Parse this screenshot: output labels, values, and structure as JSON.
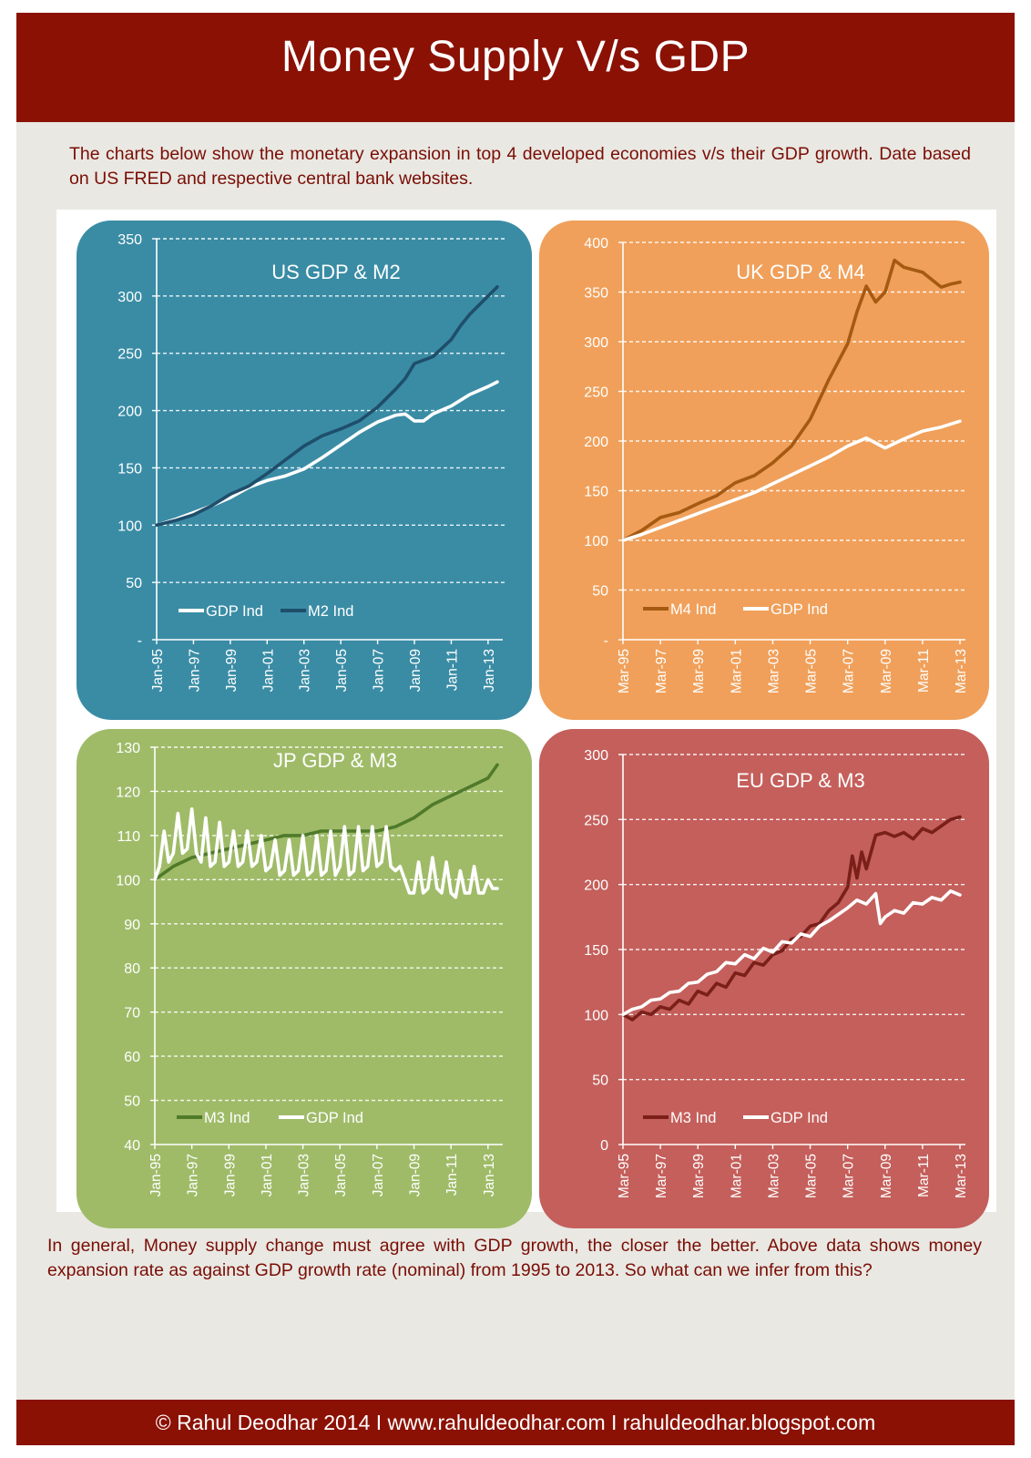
{
  "header": {
    "title": "Money Supply V/s GDP"
  },
  "intro": "The charts below show the monetary expansion in top 4 developed economies v/s their GDP growth. Date based on US FRED and respective central bank websites.",
  "conclusion": "In general, Money supply change must agree with GDP growth, the closer the better. Above data shows money expansion rate as against GDP growth rate (nominal) from 1995 to 2013. So what can we infer from this?",
  "footer": {
    "text": "© Rahul Deodhar 2014 I www.rahuldeodhar.com I rahuldeodhar.blogspot.com"
  },
  "colors": {
    "us": "#3a8ca5",
    "uk": "#f0a05a",
    "jp": "#9fbb68",
    "eu": "#c45f5b"
  },
  "chart_data": [
    {
      "id": "us",
      "type": "line",
      "title": "US GDP & M2",
      "x_start": 1995.0,
      "x_end": 2013.5,
      "x_ticks": [
        {
          "label": "Jan-95",
          "x": 1995.0
        },
        {
          "label": "Jan-97",
          "x": 1997.0
        },
        {
          "label": "Jan-99",
          "x": 1999.0
        },
        {
          "label": "Jan-01",
          "x": 2001.0
        },
        {
          "label": "Jan-03",
          "x": 2003.0
        },
        {
          "label": "Jan-05",
          "x": 2005.0
        },
        {
          "label": "Jan-07",
          "x": 2007.0
        },
        {
          "label": "Jan-09",
          "x": 2009.0
        },
        {
          "label": "Jan-11",
          "x": 2011.0
        },
        {
          "label": "Jan-13",
          "x": 2013.0
        }
      ],
      "ylim": [
        0,
        350
      ],
      "y_ticks": [
        {
          "label": "-",
          "v": 0
        },
        {
          "label": "50",
          "v": 50
        },
        {
          "label": "100",
          "v": 100
        },
        {
          "label": "150",
          "v": 150
        },
        {
          "label": "200",
          "v": 200
        },
        {
          "label": "250",
          "v": 250
        },
        {
          "label": "300",
          "v": 300
        },
        {
          "label": "350",
          "v": 350
        }
      ],
      "grid": true,
      "legend": [
        "GDP Ind",
        "M2 Ind"
      ],
      "series": [
        {
          "name": "GDP Ind",
          "color": "#ffffff",
          "x": [
            1995.0,
            1996.0,
            1997.0,
            1998.0,
            1999.0,
            2000.0,
            2001.0,
            2002.0,
            2003.0,
            2004.0,
            2005.0,
            2006.0,
            2007.0,
            2008.0,
            2008.5,
            2009.0,
            2009.5,
            2010.0,
            2011.0,
            2012.0,
            2013.0,
            2013.5
          ],
          "y": [
            100,
            105,
            111,
            117,
            124,
            133,
            139,
            143,
            149,
            159,
            170,
            181,
            190,
            196,
            197,
            191,
            191,
            197,
            204,
            214,
            221,
            225
          ]
        },
        {
          "name": "M2 Ind",
          "color": "#1f4e6b",
          "x": [
            1995.0,
            1996.0,
            1997.0,
            1998.0,
            1999.0,
            2000.0,
            2001.0,
            2002.0,
            2003.0,
            2004.0,
            2005.0,
            2006.0,
            2007.0,
            2008.0,
            2008.5,
            2009.0,
            2010.0,
            2011.0,
            2011.5,
            2012.0,
            2013.0,
            2013.5
          ],
          "y": [
            100,
            104,
            109,
            117,
            127,
            134,
            145,
            157,
            169,
            178,
            184,
            191,
            203,
            219,
            228,
            241,
            247,
            262,
            274,
            284,
            300,
            308
          ]
        }
      ]
    },
    {
      "id": "uk",
      "type": "line",
      "title": "UK GDP & M4",
      "x_start": 1995.0,
      "x_end": 2013.0,
      "x_ticks": [
        {
          "label": "Mar-95",
          "x": 1995.0
        },
        {
          "label": "Mar-97",
          "x": 1997.0
        },
        {
          "label": "Mar-99",
          "x": 1999.0
        },
        {
          "label": "Mar-01",
          "x": 2001.0
        },
        {
          "label": "Mar-03",
          "x": 2003.0
        },
        {
          "label": "Mar-05",
          "x": 2005.0
        },
        {
          "label": "Mar-07",
          "x": 2007.0
        },
        {
          "label": "Mar-09",
          "x": 2009.0
        },
        {
          "label": "Mar-11",
          "x": 2011.0
        },
        {
          "label": "Mar-13",
          "x": 2013.0
        }
      ],
      "ylim": [
        0,
        400
      ],
      "y_ticks": [
        {
          "label": "-",
          "v": 0
        },
        {
          "label": "50",
          "v": 50
        },
        {
          "label": "100",
          "v": 100
        },
        {
          "label": "150",
          "v": 150
        },
        {
          "label": "200",
          "v": 200
        },
        {
          "label": "250",
          "v": 250
        },
        {
          "label": "300",
          "v": 300
        },
        {
          "label": "350",
          "v": 350
        },
        {
          "label": "400",
          "v": 400
        }
      ],
      "grid": true,
      "legend": [
        "M4 Ind",
        "GDP Ind"
      ],
      "series": [
        {
          "name": "M4 Ind",
          "color": "#a55a12",
          "x": [
            1995.0,
            1996.0,
            1997.0,
            1998.0,
            1999.0,
            2000.0,
            2001.0,
            2002.0,
            2003.0,
            2004.0,
            2005.0,
            2006.0,
            2007.0,
            2007.5,
            2008.0,
            2008.5,
            2009.0,
            2009.5,
            2010.0,
            2011.0,
            2012.0,
            2012.5,
            2013.0
          ],
          "y": [
            100,
            110,
            123,
            128,
            137,
            145,
            158,
            165,
            178,
            195,
            222,
            262,
            298,
            330,
            356,
            340,
            350,
            382,
            375,
            370,
            355,
            358,
            360
          ]
        },
        {
          "name": "GDP Ind",
          "color": "#ffffff",
          "x": [
            1995.0,
            1996.0,
            1997.0,
            1998.0,
            1999.0,
            2000.0,
            2001.0,
            2002.0,
            2003.0,
            2004.0,
            2005.0,
            2006.0,
            2007.0,
            2008.0,
            2009.0,
            2010.0,
            2011.0,
            2012.0,
            2013.0
          ],
          "y": [
            100,
            106,
            113,
            120,
            127,
            134,
            141,
            148,
            157,
            166,
            175,
            184,
            195,
            203,
            193,
            202,
            210,
            214,
            220
          ]
        }
      ]
    },
    {
      "id": "jp",
      "type": "line",
      "title": "JP GDP & M3",
      "x_start": 1995.0,
      "x_end": 2013.5,
      "x_ticks": [
        {
          "label": "Jan-95",
          "x": 1995.0
        },
        {
          "label": "Jan-97",
          "x": 1997.0
        },
        {
          "label": "Jan-99",
          "x": 1999.0
        },
        {
          "label": "Jan-01",
          "x": 2001.0
        },
        {
          "label": "Jan-03",
          "x": 2003.0
        },
        {
          "label": "Jan-05",
          "x": 2005.0
        },
        {
          "label": "Jan-07",
          "x": 2007.0
        },
        {
          "label": "Jan-09",
          "x": 2009.0
        },
        {
          "label": "Jan-11",
          "x": 2011.0
        },
        {
          "label": "Jan-13",
          "x": 2013.0
        }
      ],
      "ylim": [
        40,
        130
      ],
      "y_ticks": [
        {
          "label": "40",
          "v": 40
        },
        {
          "label": "50",
          "v": 50
        },
        {
          "label": "60",
          "v": 60
        },
        {
          "label": "70",
          "v": 70
        },
        {
          "label": "80",
          "v": 80
        },
        {
          "label": "90",
          "v": 90
        },
        {
          "label": "100",
          "v": 100
        },
        {
          "label": "110",
          "v": 110
        },
        {
          "label": "120",
          "v": 120
        },
        {
          "label": "130",
          "v": 130
        }
      ],
      "grid": true,
      "legend": [
        "M3 Ind",
        "GDP Ind"
      ],
      "series": [
        {
          "name": "M3 Ind",
          "color": "#4f7a2a",
          "x": [
            1995.0,
            1996.0,
            1997.0,
            1998.0,
            1999.0,
            2000.0,
            2001.0,
            2002.0,
            2003.0,
            2004.0,
            2005.0,
            2006.0,
            2007.0,
            2008.0,
            2009.0,
            2010.0,
            2011.0,
            2012.0,
            2013.0,
            2013.5
          ],
          "y": [
            100,
            103,
            105,
            106,
            107,
            108,
            109,
            110,
            110,
            111,
            111,
            111,
            111,
            112,
            114,
            117,
            119,
            121,
            123,
            126
          ]
        },
        {
          "name": "GDP Ind",
          "color": "#ffffff",
          "x": [
            1995.0,
            1995.25,
            1995.5,
            1995.75,
            1996.0,
            1996.25,
            1996.5,
            1996.75,
            1997.0,
            1997.25,
            1997.5,
            1997.75,
            1998.0,
            1998.25,
            1998.5,
            1998.75,
            1999.0,
            1999.25,
            1999.5,
            1999.75,
            2000.0,
            2000.25,
            2000.5,
            2000.75,
            2001.0,
            2001.25,
            2001.5,
            2001.75,
            2002.0,
            2002.25,
            2002.5,
            2002.75,
            2003.0,
            2003.25,
            2003.5,
            2003.75,
            2004.0,
            2004.25,
            2004.5,
            2004.75,
            2005.0,
            2005.25,
            2005.5,
            2005.75,
            2006.0,
            2006.25,
            2006.5,
            2006.75,
            2007.0,
            2007.25,
            2007.5,
            2007.75,
            2008.0,
            2008.25,
            2008.5,
            2008.75,
            2009.0,
            2009.25,
            2009.5,
            2009.75,
            2010.0,
            2010.25,
            2010.5,
            2010.75,
            2011.0,
            2011.25,
            2011.5,
            2011.75,
            2012.0,
            2012.25,
            2012.5,
            2012.75,
            2013.0,
            2013.25,
            2013.5
          ],
          "y": [
            100,
            103,
            111,
            104,
            106,
            115,
            106,
            107,
            116,
            106,
            104,
            114,
            103,
            104,
            113,
            103,
            104,
            111,
            103,
            104,
            111,
            103,
            104,
            110,
            102,
            103,
            109,
            101,
            102,
            109,
            101,
            102,
            110,
            101,
            102,
            110,
            101,
            102,
            111,
            101,
            103,
            112,
            101,
            102,
            112,
            102,
            103,
            112,
            103,
            104,
            112,
            103,
            102,
            103,
            100,
            97,
            97,
            104,
            97,
            98,
            105,
            98,
            97,
            104,
            97,
            96,
            102,
            97,
            97,
            103,
            97,
            97,
            100,
            98,
            98
          ]
        }
      ]
    },
    {
      "id": "eu",
      "type": "line",
      "title": "EU GDP & M3",
      "x_start": 1995.0,
      "x_end": 2013.0,
      "x_ticks": [
        {
          "label": "Mar-95",
          "x": 1995.0
        },
        {
          "label": "Mar-97",
          "x": 1997.0
        },
        {
          "label": "Mar-99",
          "x": 1999.0
        },
        {
          "label": "Mar-01",
          "x": 2001.0
        },
        {
          "label": "Mar-03",
          "x": 2003.0
        },
        {
          "label": "Mar-05",
          "x": 2005.0
        },
        {
          "label": "Mar-07",
          "x": 2007.0
        },
        {
          "label": "Mar-09",
          "x": 2009.0
        },
        {
          "label": "Mar-11",
          "x": 2011.0
        },
        {
          "label": "Mar-13",
          "x": 2013.0
        }
      ],
      "ylim": [
        0,
        300
      ],
      "y_ticks": [
        {
          "label": "0",
          "v": 0
        },
        {
          "label": "50",
          "v": 50
        },
        {
          "label": "100",
          "v": 100
        },
        {
          "label": "150",
          "v": 150
        },
        {
          "label": "200",
          "v": 200
        },
        {
          "label": "250",
          "v": 250
        },
        {
          "label": "300",
          "v": 300
        }
      ],
      "grid": true,
      "legend": [
        "M3 Ind",
        "GDP Ind"
      ],
      "series": [
        {
          "name": "M3 Ind",
          "color": "#7a1f1a",
          "x": [
            1995.0,
            1995.5,
            1996.0,
            1996.5,
            1997.0,
            1997.5,
            1998.0,
            1998.5,
            1999.0,
            1999.5,
            2000.0,
            2000.5,
            2001.0,
            2001.5,
            2002.0,
            2002.5,
            2003.0,
            2003.5,
            2004.0,
            2004.5,
            2005.0,
            2005.5,
            2006.0,
            2006.5,
            2007.0,
            2007.25,
            2007.5,
            2007.75,
            2008.0,
            2008.5,
            2009.0,
            2009.5,
            2010.0,
            2010.5,
            2011.0,
            2011.5,
            2012.0,
            2012.5,
            2013.0
          ],
          "y": [
            100,
            96,
            102,
            100,
            106,
            104,
            111,
            108,
            118,
            115,
            124,
            121,
            132,
            130,
            140,
            138,
            146,
            149,
            158,
            160,
            168,
            170,
            180,
            186,
            198,
            222,
            205,
            225,
            212,
            238,
            240,
            237,
            240,
            235,
            243,
            240,
            245,
            250,
            252
          ]
        },
        {
          "name": "GDP Ind",
          "color": "#ffffff",
          "x": [
            1995.0,
            1995.5,
            1996.0,
            1996.5,
            1997.0,
            1997.5,
            1998.0,
            1998.5,
            1999.0,
            1999.5,
            2000.0,
            2000.5,
            2001.0,
            2001.5,
            2002.0,
            2002.5,
            2003.0,
            2003.5,
            2004.0,
            2004.5,
            2005.0,
            2005.5,
            2006.0,
            2006.5,
            2007.0,
            2007.5,
            2008.0,
            2008.5,
            2008.75,
            2009.0,
            2009.5,
            2010.0,
            2010.5,
            2011.0,
            2011.5,
            2012.0,
            2012.5,
            2013.0
          ],
          "y": [
            100,
            104,
            106,
            111,
            112,
            117,
            118,
            124,
            125,
            131,
            133,
            140,
            139,
            146,
            143,
            151,
            148,
            156,
            155,
            162,
            160,
            168,
            172,
            177,
            182,
            188,
            185,
            193,
            170,
            175,
            180,
            178,
            186,
            185,
            190,
            188,
            195,
            192
          ]
        }
      ]
    }
  ]
}
